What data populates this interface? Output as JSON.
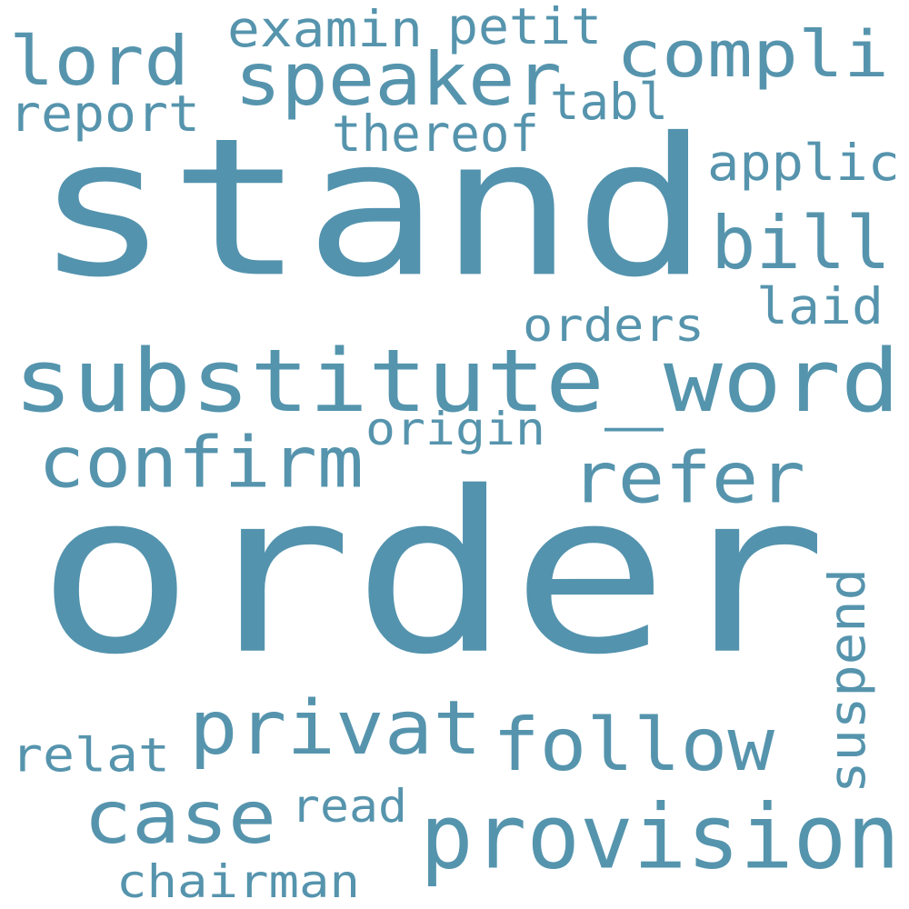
{
  "wordcloud": {
    "background": "#ffffff",
    "words": [
      {
        "text": "order",
        "color": "#5393ae"
      },
      {
        "text": "stand",
        "color": "#5393ae"
      },
      {
        "text": "substitute_word",
        "color": "#5494ad"
      },
      {
        "text": "provision",
        "color": "#5594ad"
      },
      {
        "text": "compli",
        "color": "#5694ad"
      },
      {
        "text": "speaker",
        "color": "#5694ad"
      },
      {
        "text": "lord",
        "color": "#5694ad"
      },
      {
        "text": "bill",
        "color": "#5694ad"
      },
      {
        "text": "refer",
        "color": "#5694ad"
      },
      {
        "text": "confirm",
        "color": "#5694ad"
      },
      {
        "text": "privat",
        "color": "#5694ad"
      },
      {
        "text": "follow",
        "color": "#5694ad"
      },
      {
        "text": "case",
        "color": "#5694ad"
      },
      {
        "text": "applic",
        "color": "#5694ad"
      },
      {
        "text": "examin",
        "color": "#5694ad"
      },
      {
        "text": "petit",
        "color": "#5694ad"
      },
      {
        "text": "report",
        "color": "#5694ad"
      },
      {
        "text": "tabl",
        "color": "#5694ad"
      },
      {
        "text": "thereof",
        "color": "#5694ad"
      },
      {
        "text": "laid",
        "color": "#5694ad"
      },
      {
        "text": "orders",
        "color": "#5694ad"
      },
      {
        "text": "origin",
        "color": "#5694ad"
      },
      {
        "text": "suspend",
        "color": "#5694ad"
      },
      {
        "text": "relat",
        "color": "#5694ad"
      },
      {
        "text": "read",
        "color": "#5694ad"
      },
      {
        "text": "chairman",
        "color": "#5694ad"
      }
    ]
  }
}
